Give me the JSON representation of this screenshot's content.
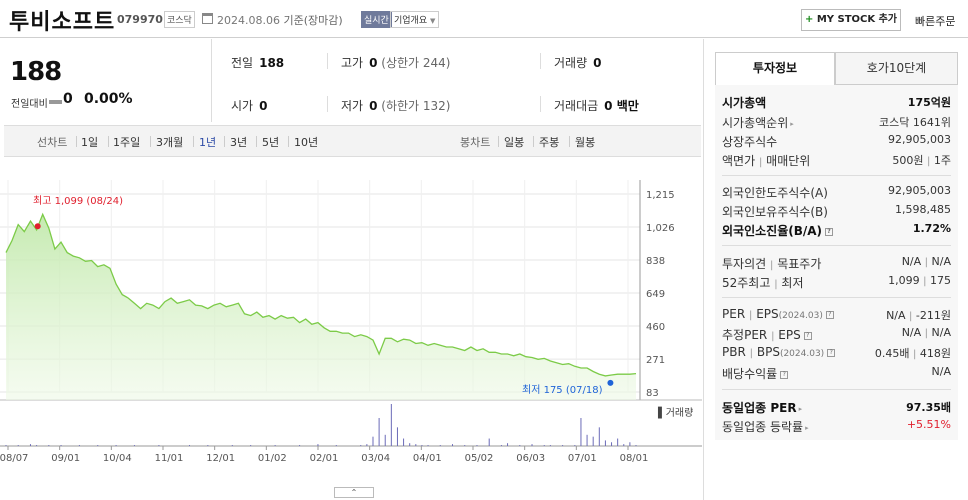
{
  "header": {
    "stock_name": "투비소프트",
    "stock_code": "079970",
    "market": "코스닥",
    "base_date": "2024.08.06",
    "base_suffix": "기준(장마감)",
    "realtime": "실시간",
    "company_overview": "기업개요",
    "mystock_label": "MY STOCK 추가",
    "quick_order": "빠른주문"
  },
  "price": {
    "current": "188",
    "change_label": "전일대비",
    "change_value": "0",
    "change_pct": "0.00%"
  },
  "stats": {
    "prev_close": {
      "label": "전일",
      "value": "188"
    },
    "high": {
      "label": "고가",
      "value": "0",
      "sub": "(상한가 244)"
    },
    "volume": {
      "label": "거래량",
      "value": "0"
    },
    "open": {
      "label": "시가",
      "value": "0"
    },
    "low": {
      "label": "저가",
      "value": "0",
      "sub": "(하한가 132)"
    },
    "trade_amount": {
      "label": "거래대금",
      "value": "0 백만"
    }
  },
  "period_tabs": {
    "line_label": "선차트",
    "line": [
      "1일",
      "1주일",
      "3개월",
      "1년",
      "3년",
      "5년",
      "10년"
    ],
    "active": "1년",
    "candle_label": "봉차트",
    "candle": [
      "일봉",
      "주봉",
      "월봉"
    ]
  },
  "chart_data": {
    "type": "area",
    "period": "1년",
    "x_ticks": [
      "08/07",
      "09/01",
      "10/04",
      "11/01",
      "12/01",
      "01/02",
      "02/01",
      "03/04",
      "04/01",
      "05/02",
      "06/03",
      "07/01",
      "08/01"
    ],
    "y_ticks": [
      1215,
      1026,
      838,
      649,
      460,
      271,
      83
    ],
    "ylim": [
      83,
      1215
    ],
    "high_annotation": "최고 1,099 (08/24)",
    "low_annotation": "최저 175 (07/18)",
    "volume_label": "거래량",
    "price_series": [
      880,
      950,
      1040,
      1000,
      1060,
      1010,
      1099,
      1020,
      900,
      940,
      880,
      860,
      850,
      830,
      835,
      800,
      810,
      790,
      700,
      640,
      620,
      590,
      560,
      590,
      580,
      560,
      600,
      620,
      590,
      600,
      610,
      580,
      575,
      560,
      580,
      590,
      570,
      580,
      590,
      530,
      520,
      540,
      510,
      520,
      500,
      520,
      505,
      510,
      480,
      500,
      470,
      480,
      450,
      430,
      430,
      420,
      420,
      400,
      410,
      400,
      380,
      300,
      390,
      390,
      370,
      385,
      380,
      360,
      365,
      350,
      360,
      350,
      340,
      340,
      330,
      320,
      340,
      320,
      330,
      310,
      310,
      300,
      300,
      290,
      300,
      285,
      280,
      270,
      275,
      260,
      250,
      240,
      245,
      230,
      220,
      220,
      200,
      185,
      175,
      180,
      185,
      185,
      185,
      188
    ],
    "volume_series": [
      1,
      0,
      1,
      0,
      2,
      1,
      0,
      1,
      0,
      1,
      0,
      0,
      1,
      0,
      0,
      1,
      0,
      0,
      1,
      0,
      0,
      1,
      0,
      0,
      0,
      1,
      0,
      0,
      0,
      0,
      1,
      0,
      0,
      1,
      0,
      0,
      0,
      1,
      0,
      0,
      1,
      0,
      0,
      0,
      1,
      0,
      0,
      0,
      1,
      0,
      0,
      2,
      0,
      0,
      1,
      0,
      0,
      0,
      1,
      2,
      10,
      30,
      12,
      45,
      20,
      8,
      3,
      2,
      1,
      1,
      0,
      1,
      0,
      2,
      0,
      1,
      0,
      1,
      0,
      8,
      0,
      1,
      3,
      0,
      1,
      0,
      2,
      0,
      1,
      1,
      0,
      1,
      0,
      1,
      30,
      12,
      10,
      20,
      6,
      4,
      8,
      2,
      4,
      1
    ]
  },
  "right_panel": {
    "tab_active": "투자정보",
    "tab_other": "호가10단계",
    "market_cap": {
      "label": "시가총액",
      "value": "175억원"
    },
    "cap_rank": {
      "label": "시가총액순위",
      "value": "코스닥 1641위"
    },
    "shares": {
      "label": "상장주식수",
      "value": "92,905,003"
    },
    "par_value": {
      "label": "액면가",
      "sep": "l",
      "label2": "매매단위",
      "value": "500원",
      "value2": "1주"
    },
    "foreign_limit": {
      "label": "외국인한도주식수(A)",
      "value": "92,905,003"
    },
    "foreign_hold": {
      "label": "외국인보유주식수(B)",
      "value": "1,598,485"
    },
    "foreign_rate": {
      "label": "외국인소진율(B/A)",
      "value": "1.72%"
    },
    "opinion": {
      "label": "투자의견",
      "label2": "목표주가",
      "value": "N/A",
      "value2": "N/A"
    },
    "week52": {
      "label": "52주최고",
      "label2": "최저",
      "value": "1,099",
      "value2": "175"
    },
    "per": {
      "label": "PER",
      "label2": "EPS",
      "period": "(2024.03)",
      "value": "N/A",
      "value2": "-211원"
    },
    "est_per": {
      "label": "추정PER",
      "label2": "EPS",
      "value": "N/A",
      "value2": "N/A"
    },
    "pbr": {
      "label": "PBR",
      "label2": "BPS",
      "period": "(2024.03)",
      "value": "0.45배",
      "value2": "418원"
    },
    "dividend": {
      "label": "배당수익률",
      "value": "N/A"
    },
    "sector_per": {
      "label": "동일업종 PER",
      "value": "97.35배"
    },
    "sector_rate": {
      "label": "동일업종 등락률",
      "value": "+5.51%"
    }
  }
}
